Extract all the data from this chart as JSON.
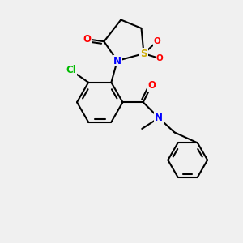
{
  "bg_color": "#f0f0f0",
  "bond_color": "#000000",
  "bond_width": 1.5,
  "atom_colors": {
    "N": "#0000ff",
    "O": "#ff0000",
    "S": "#ccaa00",
    "Cl": "#00bb00",
    "C": "#000000"
  },
  "font_size": 8.5,
  "small_font_size": 7.5
}
